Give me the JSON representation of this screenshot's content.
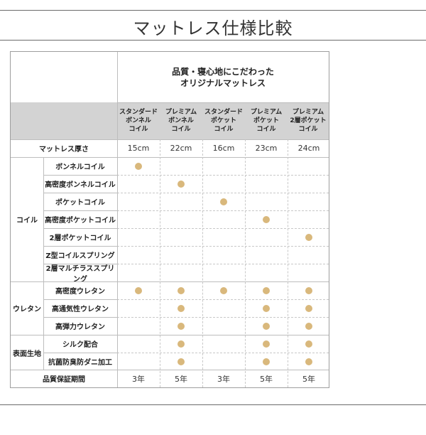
{
  "page": {
    "title": "マットレス仕様比較"
  },
  "table": {
    "header_title_line1": "品質・寝心地にこだわった",
    "header_title_line2": "オリジナルマットレス",
    "columns": [
      {
        "line1": "スタンダード",
        "line2": "ボンネル",
        "line3": "コイル"
      },
      {
        "line1": "プレミアム",
        "line2": "ボンネル",
        "line3": "コイル"
      },
      {
        "line1": "スタンダード",
        "line2": "ポケット",
        "line3": "コイル"
      },
      {
        "line1": "プレミアム",
        "line2": "ポケット",
        "line3": "コイル"
      },
      {
        "line1": "プレミアム",
        "line2": "2層ポケット",
        "line3": "コイル"
      }
    ],
    "thickness": {
      "label": "マットレス厚さ",
      "values": [
        "15cm",
        "22cm",
        "16cm",
        "23cm",
        "24cm"
      ]
    },
    "groups": [
      {
        "label": "コイル",
        "rows": [
          {
            "label": "ボンネルコイル",
            "marks": [
              true,
              false,
              false,
              false,
              false
            ]
          },
          {
            "label": "高密度ボンネルコイル",
            "marks": [
              false,
              true,
              false,
              false,
              false
            ]
          },
          {
            "label": "ポケットコイル",
            "marks": [
              false,
              false,
              true,
              false,
              false
            ]
          },
          {
            "label": "高密度ポケットコイル",
            "marks": [
              false,
              false,
              false,
              true,
              false
            ]
          },
          {
            "label": "2層ポケットコイル",
            "marks": [
              false,
              false,
              false,
              false,
              true
            ]
          },
          {
            "label": "Z型コイルスプリング",
            "marks": [
              false,
              false,
              false,
              false,
              false
            ]
          },
          {
            "label": "2層マルチラススプリング",
            "marks": [
              false,
              false,
              false,
              false,
              false
            ]
          }
        ]
      },
      {
        "label": "ウレタン",
        "rows": [
          {
            "label": "高密度ウレタン",
            "marks": [
              true,
              true,
              true,
              true,
              true
            ]
          },
          {
            "label": "高通気性ウレタン",
            "marks": [
              false,
              true,
              false,
              true,
              true
            ]
          },
          {
            "label": "高弾力ウレタン",
            "marks": [
              false,
              true,
              false,
              true,
              true
            ]
          }
        ]
      },
      {
        "label": "表面生地",
        "rows": [
          {
            "label": "シルク配合",
            "marks": [
              false,
              true,
              false,
              true,
              true
            ]
          },
          {
            "label": "抗菌防臭防ダニ加工",
            "marks": [
              false,
              true,
              false,
              true,
              true
            ]
          }
        ]
      }
    ],
    "warranty": {
      "label": "品質保証期間",
      "values": [
        "3年",
        "5年",
        "3年",
        "5年",
        "5年"
      ]
    },
    "colors": {
      "header_gray": "#d3d3d3",
      "dot": "#d9b87c"
    }
  }
}
